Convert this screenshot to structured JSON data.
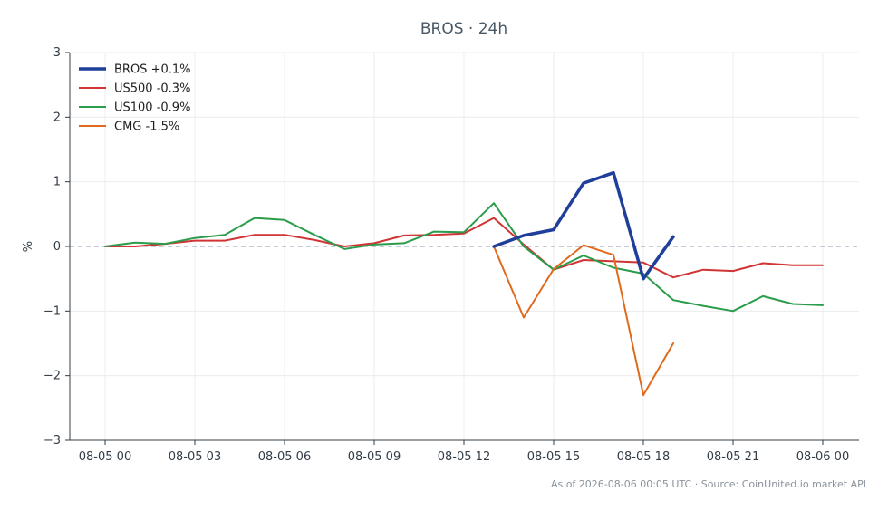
{
  "chart_data": {
    "type": "line",
    "title": "BROS · 24h",
    "ylabel": "%",
    "xlabel": "",
    "ylim": [
      -3,
      3
    ],
    "yticks": [
      3,
      2,
      1,
      0,
      -1,
      -2,
      -3
    ],
    "ytick_labels": [
      "3",
      "2",
      "1",
      "0",
      "−1",
      "−2",
      "−3"
    ],
    "x": [
      "08-05 00",
      "08-05 01",
      "08-05 02",
      "08-05 03",
      "08-05 04",
      "08-05 05",
      "08-05 06",
      "08-05 07",
      "08-05 08",
      "08-05 09",
      "08-05 10",
      "08-05 11",
      "08-05 12",
      "08-05 13",
      "08-05 14",
      "08-05 15",
      "08-05 16",
      "08-05 17",
      "08-05 18",
      "08-05 19",
      "08-05 20",
      "08-05 21",
      "08-05 22",
      "08-05 23",
      "08-06 00"
    ],
    "xticks": [
      "08-05 00",
      "08-05 03",
      "08-05 06",
      "08-05 09",
      "08-05 12",
      "08-05 15",
      "08-05 18",
      "08-05 21",
      "08-06 00"
    ],
    "grid": true,
    "zero_line": true,
    "legend_position": "top-left",
    "series": [
      {
        "name": "BROS +0.1%",
        "color": "#1f3f9a",
        "width": 3.5,
        "values": [
          null,
          null,
          null,
          null,
          null,
          null,
          null,
          null,
          null,
          null,
          null,
          null,
          null,
          0.0,
          0.17,
          0.26,
          0.98,
          1.14,
          -0.5,
          0.15,
          null,
          null,
          null,
          null,
          null
        ]
      },
      {
        "name": "US500 -0.3%",
        "color": "#d13434",
        "width": 2,
        "values": [
          0.0,
          0.0,
          0.04,
          0.09,
          0.09,
          0.18,
          0.18,
          0.1,
          0.0,
          0.05,
          0.17,
          0.18,
          0.2,
          0.44,
          0.03,
          -0.36,
          -0.21,
          -0.23,
          -0.25,
          -0.48,
          -0.36,
          -0.38,
          -0.26,
          -0.29,
          -0.29
        ]
      },
      {
        "name": "US100 -0.9%",
        "color": "#2a9c4c",
        "width": 2,
        "values": [
          0.0,
          0.06,
          0.04,
          0.13,
          0.18,
          0.44,
          0.41,
          0.18,
          -0.04,
          0.03,
          0.05,
          0.23,
          0.22,
          0.67,
          0.0,
          -0.36,
          -0.14,
          -0.33,
          -0.42,
          -0.83,
          -0.92,
          -1.0,
          -0.77,
          -0.89,
          -0.91
        ]
      },
      {
        "name": "CMG -1.5%",
        "color": "#e06a1c",
        "width": 2,
        "values": [
          null,
          null,
          null,
          null,
          null,
          null,
          null,
          null,
          null,
          null,
          null,
          null,
          null,
          0.0,
          -1.1,
          -0.35,
          0.02,
          -0.13,
          -2.3,
          -1.5,
          null,
          null,
          null,
          null,
          null
        ]
      }
    ]
  },
  "footer": {
    "source_text": "As of 2026-08-06 00:05 UTC · Source: CoinUnited.io market API"
  }
}
